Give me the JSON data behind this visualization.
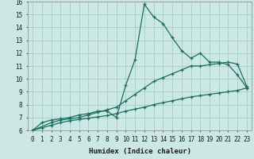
{
  "title": "",
  "xlabel": "Humidex (Indice chaleur)",
  "xlim": [
    -0.5,
    23.5
  ],
  "ylim": [
    6,
    16
  ],
  "xticks": [
    0,
    1,
    2,
    3,
    4,
    5,
    6,
    7,
    8,
    9,
    10,
    11,
    12,
    13,
    14,
    15,
    16,
    17,
    18,
    19,
    20,
    21,
    22,
    23
  ],
  "yticks": [
    6,
    7,
    8,
    9,
    10,
    11,
    12,
    13,
    14,
    15,
    16
  ],
  "bg_color": "#cce8e4",
  "grid_color": "#aad0c8",
  "line_color": "#1a6e62",
  "line1_x": [
    0,
    1,
    2,
    3,
    4,
    5,
    6,
    7,
    8,
    9,
    10,
    11,
    12,
    13,
    14,
    15,
    16,
    17,
    18,
    19,
    20,
    21,
    22,
    23
  ],
  "line1_y": [
    6.0,
    6.6,
    6.8,
    6.9,
    7.0,
    7.2,
    7.3,
    7.5,
    7.5,
    7.0,
    9.5,
    11.5,
    15.8,
    14.8,
    14.3,
    13.2,
    12.2,
    11.6,
    12.0,
    11.3,
    11.3,
    11.1,
    10.3,
    9.3
  ],
  "line2_x": [
    0,
    2,
    3,
    4,
    5,
    6,
    7,
    8,
    9,
    10,
    11,
    12,
    13,
    14,
    15,
    16,
    17,
    18,
    19,
    20,
    21,
    22,
    23
  ],
  "line2_y": [
    6.0,
    6.6,
    6.8,
    6.9,
    7.0,
    7.2,
    7.4,
    7.6,
    7.8,
    8.3,
    8.8,
    9.3,
    9.8,
    10.1,
    10.4,
    10.7,
    11.0,
    11.0,
    11.1,
    11.2,
    11.3,
    11.15,
    9.4
  ],
  "line3_x": [
    0,
    1,
    2,
    3,
    4,
    5,
    6,
    7,
    8,
    9,
    10,
    11,
    12,
    13,
    14,
    15,
    16,
    17,
    18,
    19,
    20,
    21,
    22,
    23
  ],
  "line3_y": [
    6.0,
    6.2,
    6.4,
    6.6,
    6.75,
    6.85,
    6.95,
    7.05,
    7.15,
    7.3,
    7.5,
    7.65,
    7.8,
    8.0,
    8.15,
    8.3,
    8.45,
    8.6,
    8.7,
    8.8,
    8.9,
    9.0,
    9.1,
    9.3
  ]
}
